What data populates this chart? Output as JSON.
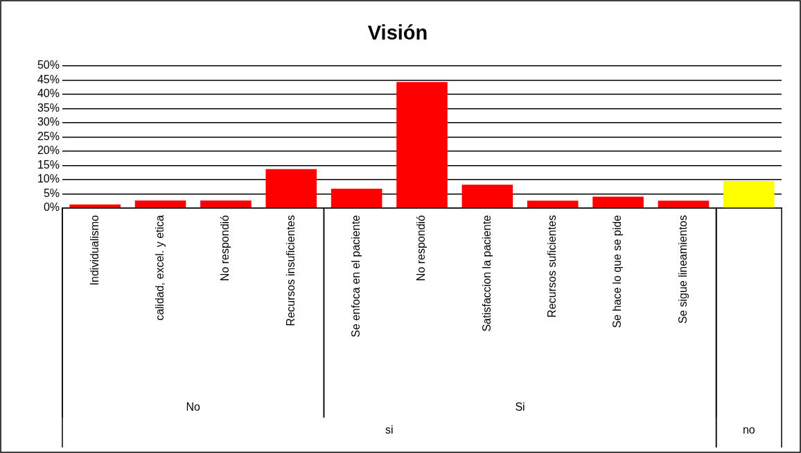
{
  "chart_data": {
    "type": "bar",
    "title": "Visión",
    "categories": [
      "Individualismo",
      "calidad, excel. y etica",
      "No respondió",
      "Recursos insuficientes",
      "Se enfoca en el paciente",
      "No respondió",
      "Satisfaccion la paciente",
      "Recursos suficientes",
      "Se hace lo que se pide",
      "Se sigue lineamientos",
      null
    ],
    "values": [
      1.3,
      2.7,
      2.7,
      13.7,
      6.8,
      44.3,
      8.2,
      2.6,
      4.0,
      2.6,
      9.5
    ],
    "colors": [
      "#ff0000",
      "#ff0000",
      "#ff0000",
      "#ff0000",
      "#ff0000",
      "#ff0000",
      "#ff0000",
      "#ff0000",
      "#ff0000",
      "#ff0000",
      "#ffff00"
    ],
    "ylim": [
      0,
      50
    ],
    "yticks": [
      {
        "value": 0,
        "label": "0%"
      },
      {
        "value": 5,
        "label": "5%"
      },
      {
        "value": 10,
        "label": "10%"
      },
      {
        "value": 15,
        "label": "15%"
      },
      {
        "value": 20,
        "label": "20%"
      },
      {
        "value": 25,
        "label": "25%"
      },
      {
        "value": 30,
        "label": "30%"
      },
      {
        "value": 35,
        "label": "35%"
      },
      {
        "value": 40,
        "label": "40%"
      },
      {
        "value": 45,
        "label": "45%"
      },
      {
        "value": 50,
        "label": "50%"
      }
    ],
    "grid": "y",
    "annotations": [
      "No",
      "Si",
      "si",
      "no"
    ]
  }
}
